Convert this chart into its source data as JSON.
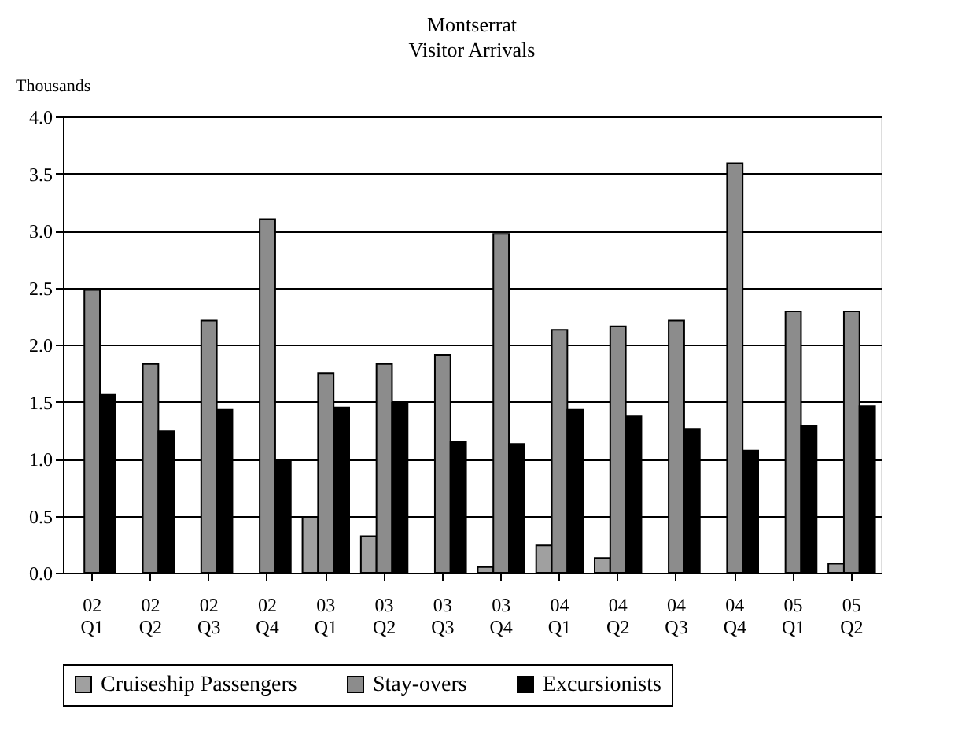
{
  "chart_data": {
    "type": "bar",
    "title": "Montserrat",
    "subtitle": "Visitor Arrivals",
    "ylabel": "Thousands",
    "categories": [
      "02 Q1",
      "02 Q2",
      "02 Q3",
      "02 Q4",
      "03 Q1",
      "03 Q2",
      "03 Q3",
      "03 Q4",
      "04 Q1",
      "04 Q2",
      "04 Q3",
      "04 Q4",
      "05 Q1",
      "05 Q2"
    ],
    "series": [
      {
        "name": "Cruiseship Passengers",
        "color": "#a0a0a0",
        "values": [
          null,
          null,
          null,
          null,
          0.49,
          0.32,
          null,
          0.05,
          0.24,
          0.13,
          null,
          null,
          null,
          0.08
        ]
      },
      {
        "name": "Stay-overs",
        "color": "#8c8c8c",
        "values": [
          2.48,
          1.83,
          2.21,
          3.1,
          1.75,
          1.83,
          1.91,
          2.97,
          2.13,
          2.16,
          2.21,
          3.59,
          2.29,
          2.29
        ]
      },
      {
        "name": "Excursionists",
        "color": "#000000",
        "values": [
          1.56,
          1.24,
          1.43,
          0.99,
          1.45,
          1.49,
          1.15,
          1.13,
          1.43,
          1.37,
          1.26,
          1.07,
          1.29,
          1.46
        ]
      }
    ],
    "ylim": [
      0,
      4.0
    ],
    "yticks": [
      {
        "value": 0,
        "label": "0.0"
      },
      0.5,
      {
        "value": 1,
        "label": "1.0"
      },
      1.5,
      {
        "value": 2,
        "label": "2.0"
      },
      2.5,
      {
        "value": 3,
        "label": "3.0"
      },
      3.5,
      {
        "value": 4,
        "label": "4.0"
      }
    ],
    "grid": "y",
    "legend": "bottom"
  }
}
